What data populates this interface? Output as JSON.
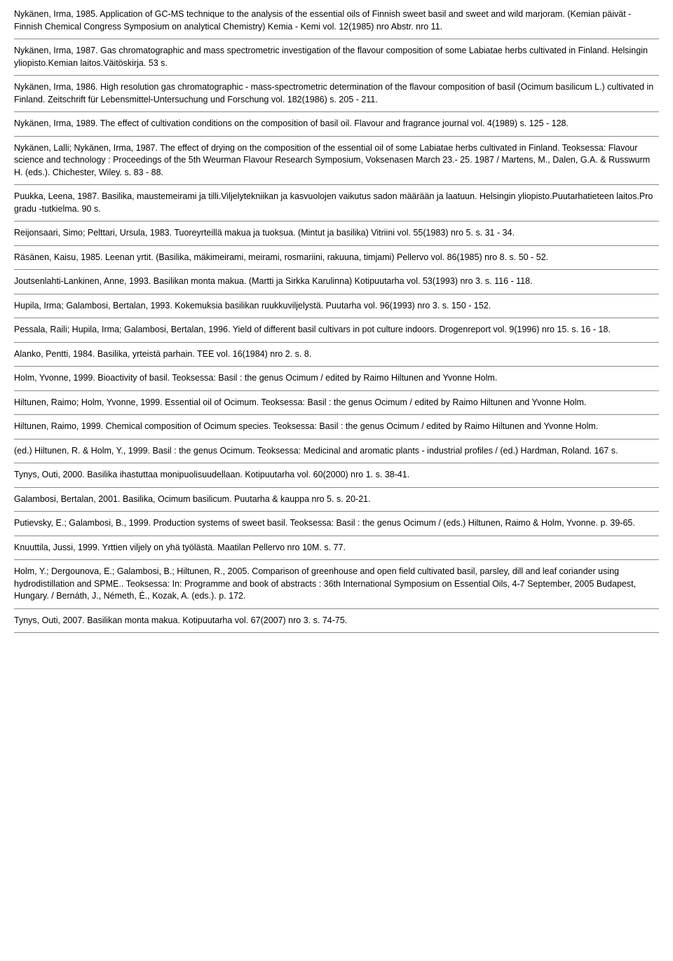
{
  "entries": [
    "Nykänen, Irma, 1985. Application of GC-MS technique to the analysis of the essential oils of Finnish sweet basil and sweet and wild marjoram. (Kemian päivät - Finnish Chemical Congress Symposium on analytical Chemistry) Kemia - Kemi vol. 12(1985) nro Abstr. nro 11.",
    "Nykänen, Irma, 1987. Gas chromatographic and mass spectrometric investigation of the flavour composition of some Labiatae herbs cultivated in Finland. Helsingin yliopisto.Kemian laitos.Väitöskirja. 53 s.",
    "Nykänen, Irma, 1986. High resolution gas chromatographic - mass-spectrometric determination of the flavour composition of basil (Ocimum basilicum L.) cultivated in Finland. Zeitschrift für Lebensmittel-Untersuchung und Forschung vol. 182(1986) s. 205 - 211.",
    "Nykänen, Irma, 1989. The effect of cultivation conditions on the composition of basil oil. Flavour and fragrance journal vol. 4(1989) s. 125 - 128.",
    "Nykänen, Lalli; Nykänen, Irma, 1987. The effect of drying on the composition of the essential oil of some Labiatae herbs cultivated in Finland. Teoksessa: Flavour science and technology : Proceedings of the 5th Weurman Flavour Research Symposium, Voksenasen March 23.- 25. 1987 / Martens, M., Dalen, G.A. & Russwurm H. (eds.). Chichester, Wiley. s. 83 - 88.",
    "Puukka, Leena, 1987. Basilika, maustemeirami ja tilli.Viljelytekniikan ja kasvuolojen vaikutus sadon määrään ja laatuun. Helsingin yliopisto.Puutarhatieteen laitos.Pro gradu -tutkielma. 90 s.",
    "Reijonsaari, Simo; Pelttari, Ursula, 1983. Tuoreyrteillä makua ja tuoksua. (Mintut ja basilika) Vitriini vol. 55(1983) nro 5. s. 31 - 34.",
    "Räsänen, Kaisu, 1985. Leenan yrtit. (Basilika, mäkimeirami, meirami, rosmariini, rakuuna, timjami) Pellervo vol. 86(1985) nro 8. s. 50 - 52.",
    "Joutsenlahti-Lankinen, Anne, 1993. Basilikan monta makua. (Martti ja Sirkka Karulinna) Kotipuutarha vol. 53(1993) nro 3. s. 116 - 118.",
    "Hupila, Irma; Galambosi, Bertalan, 1993. Kokemuksia basilikan ruukkuviljelystä. Puutarha vol. 96(1993) nro 3. s. 150 - 152.",
    "Pessala, Raili; Hupila, Irma; Galambosi, Bertalan, 1996. Yield of different basil cultivars in pot culture indoors. Drogenreport vol. 9(1996) nro 15. s. 16 - 18.",
    "Alanko, Pentti, 1984. Basilika, yrteistä parhain. TEE vol. 16(1984) nro 2. s. 8.",
    "Holm, Yvonne, 1999. Bioactivity of basil. Teoksessa: Basil : the genus Ocimum / edited by Raimo Hiltunen and Yvonne Holm.",
    "Hiltunen, Raimo; Holm, Yvonne, 1999. Essential oil of Ocimum. Teoksessa: Basil : the genus Ocimum / edited by Raimo Hiltunen and Yvonne Holm.",
    "Hiltunen, Raimo, 1999. Chemical composition of Ocimum species. Teoksessa: Basil : the genus Ocimum / edited by Raimo Hiltunen and Yvonne Holm.",
    "(ed.) Hiltunen, R. & Holm, Y., 1999. Basil : the genus Ocimum. Teoksessa: Medicinal and aromatic plants - industrial profiles / (ed.) Hardman, Roland. 167 s.",
    "Tynys, Outi, 2000. Basilika ihastuttaa monipuolisuudellaan. Kotipuutarha vol. 60(2000) nro 1. s. 38-41.",
    "Galambosi, Bertalan, 2001. Basilika, Ocimum basilicum. Puutarha & kauppa nro 5. s. 20-21.",
    "Putievsky, E.; Galambosi, B., 1999. Production systems of sweet basil. Teoksessa: Basil : the genus Ocimum / (eds.) Hiltunen, Raimo & Holm, Yvonne. p. 39-65.",
    "Knuuttila, Jussi, 1999. Yrttien viljely on yhä työlästä. Maatilan Pellervo nro 10M. s. 77.",
    "Holm, Y.; Dergounova, E.; Galambosi, B.; Hiltunen, R., 2005. Comparison of greenhouse and open field cultivated basil, parsley, dill and leaf coriander using hydrodistillation and SPME.. Teoksessa: In: Programme and book of abstracts : 36th International Symposium on Essential Oils, 4-7 September, 2005 Budapest, Hungary. / Bernáth, J., Németh, É., Kozak, A. (eds.). p. 172.",
    "Tynys, Outi, 2007. Basilikan monta makua. Kotipuutarha vol. 67(2007) nro 3. s. 74-75."
  ]
}
